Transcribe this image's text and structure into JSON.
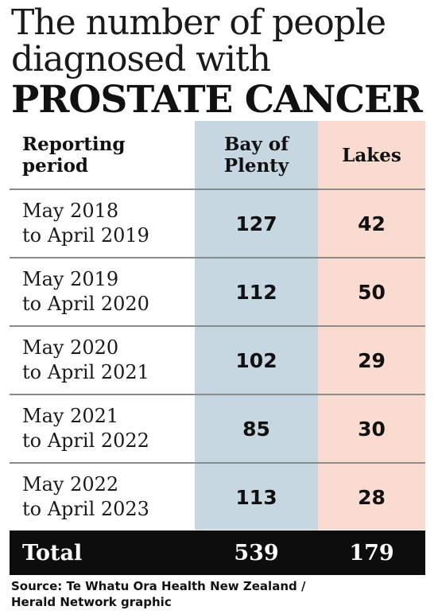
{
  "title": {
    "line1": "The number of people",
    "line2": "diagnosed with",
    "line3": "PROSTATE CANCER"
  },
  "colors": {
    "bay_of_plenty_bg": "#c6d7e2",
    "lakes_bg": "#fadbcf",
    "total_bg": "#0d0d0d"
  },
  "table": {
    "headers": [
      "Reporting period",
      "Bay of Plenty",
      "Lakes"
    ],
    "header_lines": {
      "col1": [
        "Reporting",
        "period"
      ],
      "col2": [
        "Bay of",
        "Plenty"
      ],
      "col3": [
        "Lakes"
      ]
    },
    "rows": [
      {
        "period_line1": "May 2018",
        "period_line2": "to April 2019",
        "bay_of_plenty": "127",
        "lakes": "42"
      },
      {
        "period_line1": "May 2019",
        "period_line2": "to April 2020",
        "bay_of_plenty": "112",
        "lakes": "50"
      },
      {
        "period_line1": "May 2020",
        "period_line2": "to April 2021",
        "bay_of_plenty": "102",
        "lakes": "29"
      },
      {
        "period_line1": "May 2021",
        "period_line2": "to April 2022",
        "bay_of_plenty": "85",
        "lakes": "30"
      },
      {
        "period_line1": "May 2022",
        "period_line2": "to April 2023",
        "bay_of_plenty": "113",
        "lakes": "28"
      }
    ],
    "total": {
      "label": "Total",
      "bay_of_plenty": "539",
      "lakes": "179"
    }
  },
  "source": {
    "line1": "Source: Te Whatu Ora Health New Zealand /",
    "line2": "Herald Network graphic"
  },
  "chart_data": {
    "type": "table",
    "title": "The number of people diagnosed with PROSTATE CANCER",
    "columns": [
      "Reporting period",
      "Bay of Plenty",
      "Lakes"
    ],
    "categories": [
      "May 2018 to April 2019",
      "May 2019 to April 2020",
      "May 2020 to April 2021",
      "May 2021 to April 2022",
      "May 2022 to April 2023"
    ],
    "series": [
      {
        "name": "Bay of Plenty",
        "values": [
          127,
          112,
          102,
          85,
          113
        ]
      },
      {
        "name": "Lakes",
        "values": [
          42,
          50,
          29,
          30,
          28
        ]
      }
    ],
    "totals": {
      "Bay of Plenty": 539,
      "Lakes": 179
    }
  }
}
